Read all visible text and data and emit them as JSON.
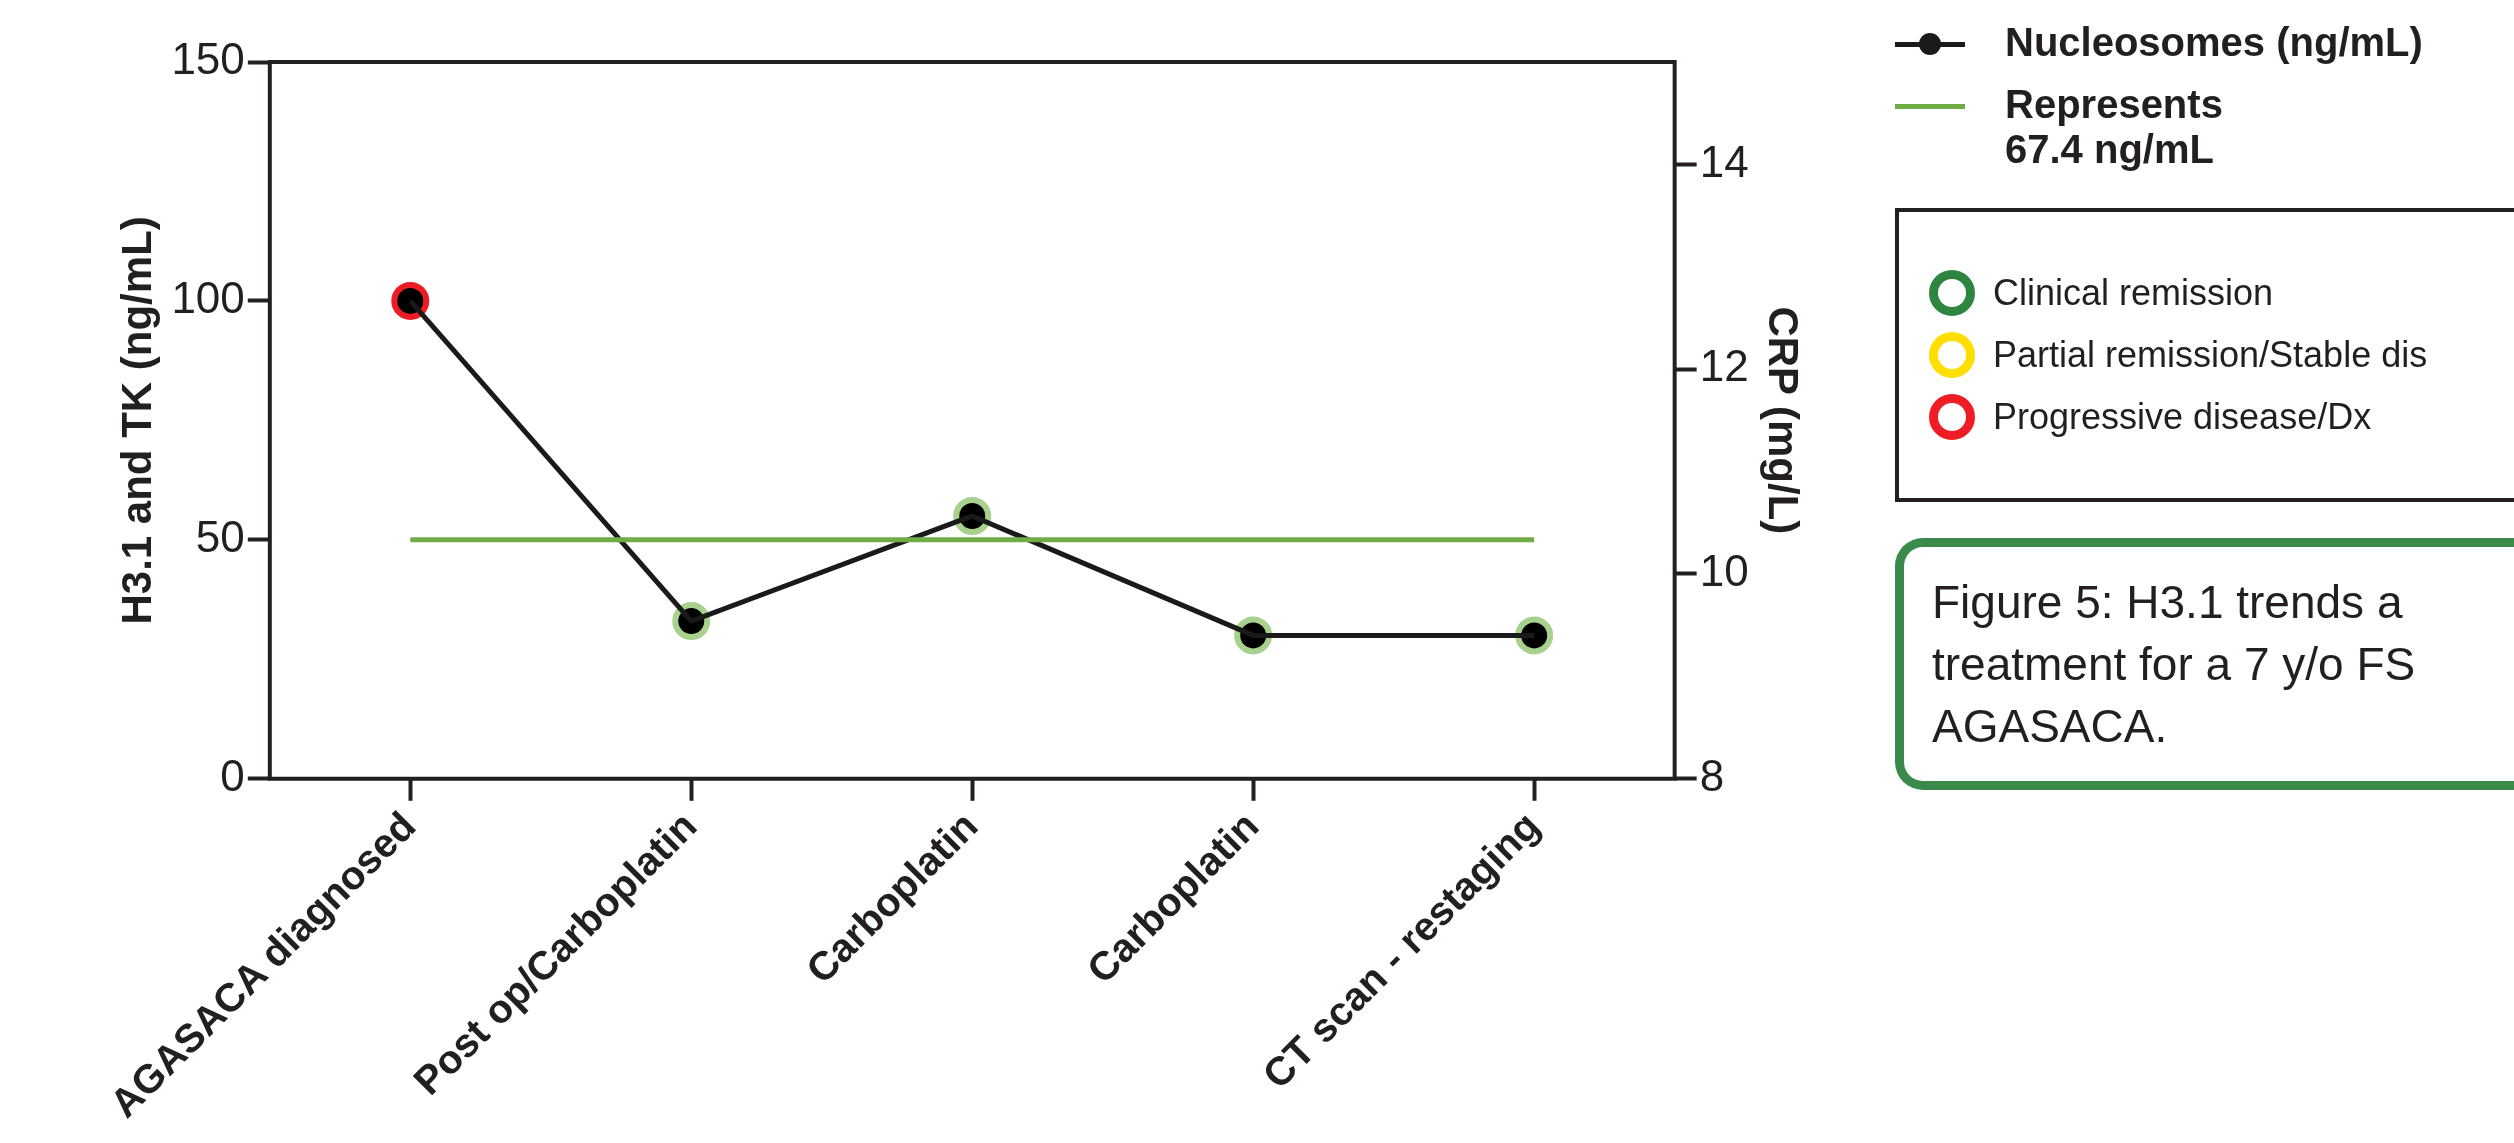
{
  "chart_data": {
    "type": "line",
    "ylabel": "H3.1 and TK (ng/mL)",
    "y2label": "CRP (mg/L)",
    "categories": [
      "AGASACA diagnosed",
      "Post op/Carboplatin",
      "Carboplatin",
      "Carboplatin",
      "CT scan - restaging"
    ],
    "series": [
      {
        "name": "Nucleosomes (ng/mL)",
        "color": "#1a1a1a",
        "colors": [
          "#ee1c25",
          "#a9d18e",
          "#a9d18e",
          "#a9d18e",
          "#a9d18e"
        ],
        "values": [
          100,
          33,
          55,
          30,
          30
        ]
      }
    ],
    "ylim": [
      0,
      150
    ],
    "yticks": [
      0,
      50,
      100,
      150
    ],
    "y2lim": [
      8,
      15
    ],
    "y2ticks": [
      8,
      10,
      12,
      14
    ],
    "ref_lines": [
      {
        "axis": "y",
        "value": 50,
        "label": "Represents 67.4 ng/mL",
        "color": "#70ad47"
      }
    ],
    "marker": "circle",
    "line_style": "solid",
    "grid": false,
    "legend": "top right",
    "annotations": [
      "Clinical remission",
      "Partial remission/Stable dis",
      "Progressive disease/Dx",
      "Figure 5: H3.1 trends a treatment for a 7 y/o FS AGASACA."
    ]
  }
}
